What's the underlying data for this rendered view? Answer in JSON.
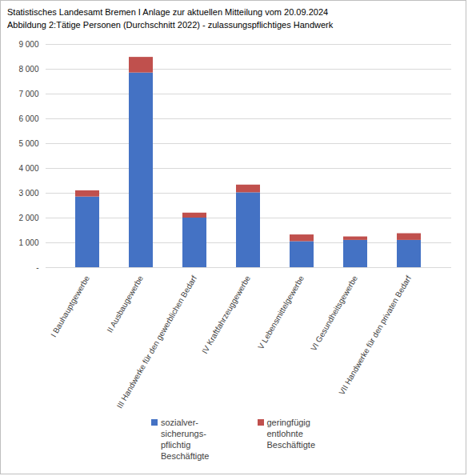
{
  "chart_data": {
    "type": "bar",
    "title": "Statistisches Landesamt Bremen I Anlage zur aktuellen Mitteilung vom 20.09.2024",
    "subtitle": "Abbildung 2:Tätige Personen (Durchschnitt 2022) - zulassungspflichtiges Handwerk",
    "categories": [
      "I Bauhauptgewerbe",
      "II Ausbaugewerbe",
      "III Handwerke für den gewerblichen Bedarf",
      "IV Kraftfahrzeuggewerbe",
      "V Lebensmittelgewerbe",
      "VI Gesundheitsgewerbe",
      "VII Handwerke für den privaten Bedarf"
    ],
    "series": [
      {
        "name": "sozialver-\nsicherungs-\npflichtig\nBeschäftigte",
        "color": "#4472c4",
        "values": [
          2850,
          7850,
          2000,
          3020,
          1050,
          1100,
          1100
        ]
      },
      {
        "name": "geringfügig\nentlohnte\nBeschäftigte",
        "color": "#c0504d",
        "values": [
          250,
          630,
          200,
          310,
          270,
          140,
          270
        ]
      }
    ],
    "stacked": true,
    "grid": true,
    "legend": "bottom",
    "ylim": [
      0,
      9000
    ],
    "yticks": [
      {
        "value": 0,
        "label": "-"
      },
      {
        "value": 1000,
        "label": "1 000"
      },
      {
        "value": 2000,
        "label": "2 000"
      },
      {
        "value": 3000,
        "label": "3 000"
      },
      {
        "value": 4000,
        "label": "4 000"
      },
      {
        "value": 5000,
        "label": "5 000"
      },
      {
        "value": 6000,
        "label": "6 000"
      },
      {
        "value": 7000,
        "label": "7 000"
      },
      {
        "value": 8000,
        "label": "8 000"
      },
      {
        "value": 9000,
        "label": "9 000"
      }
    ]
  }
}
